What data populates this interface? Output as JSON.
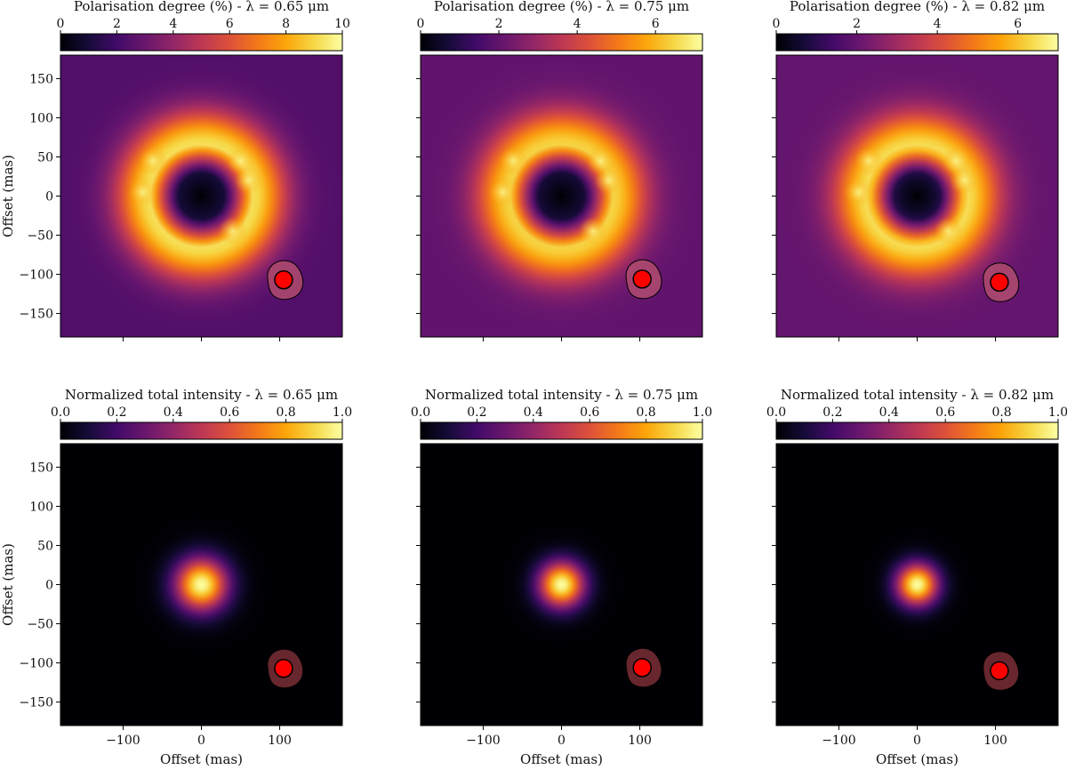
{
  "chart_data": [
    {
      "id": "pol-065",
      "type": "heatmap",
      "title": "Polarisation degree (%) - λ = 0.65 μm",
      "colorbar": {
        "ticks": [
          "0",
          "2",
          "4",
          "6",
          "8",
          "10"
        ],
        "range": [
          0,
          10
        ]
      },
      "xlabel": "",
      "ylabel": "Offset (mas)",
      "x_ticks": [],
      "y_ticks": [
        "150",
        "100",
        "50",
        "0",
        "−50",
        "−100",
        "−150"
      ],
      "axis_range": [
        -180,
        180
      ],
      "colormap": "inferno",
      "center": [
        0,
        0
      ],
      "structure": "ring",
      "inner_hole_radius": 30,
      "peak_ring_radius": 65,
      "peak_value": 10,
      "background_value": 2.4,
      "beam": {
        "x": 105,
        "y": -107
      }
    },
    {
      "id": "pol-075",
      "type": "heatmap",
      "title": "Polarisation degree (%) - λ = 0.75 μm",
      "colorbar": {
        "ticks": [
          "0",
          "2",
          "4",
          "6"
        ],
        "range": [
          0,
          7.2
        ]
      },
      "xlabel": "",
      "ylabel": "",
      "x_ticks": [],
      "y_ticks": [],
      "axis_range": [
        -180,
        180
      ],
      "colormap": "inferno",
      "center": [
        0,
        0
      ],
      "structure": "ring",
      "inner_hole_radius": 30,
      "peak_ring_radius": 65,
      "peak_value": 7,
      "background_value": 2.0,
      "beam": {
        "x": 103,
        "y": -106
      }
    },
    {
      "id": "pol-082",
      "type": "heatmap",
      "title": "Polarisation degree (%) - λ = 0.82 μm",
      "colorbar": {
        "ticks": [
          "0",
          "2",
          "4",
          "6"
        ],
        "range": [
          0,
          7.0
        ]
      },
      "xlabel": "",
      "ylabel": "",
      "x_ticks": [],
      "y_ticks": [],
      "axis_range": [
        -180,
        180
      ],
      "colormap": "inferno",
      "center": [
        0,
        0
      ],
      "structure": "ring",
      "inner_hole_radius": 28,
      "peak_ring_radius": 62,
      "peak_value": 7,
      "background_value": 2.0,
      "beam": {
        "x": 105,
        "y": -110
      }
    },
    {
      "id": "int-065",
      "type": "heatmap",
      "title": "Normalized total intensity - λ = 0.65 μm",
      "colorbar": {
        "ticks": [
          "0.0",
          "0.2",
          "0.4",
          "0.6",
          "0.8",
          "1.0"
        ],
        "range": [
          0,
          1
        ]
      },
      "xlabel": "Offset (mas)",
      "ylabel": "Offset (mas)",
      "x_ticks": [
        "−100",
        "0",
        "100"
      ],
      "y_ticks": [
        "150",
        "100",
        "50",
        "0",
        "−50",
        "−100",
        "−150"
      ],
      "axis_range": [
        -180,
        180
      ],
      "colormap": "inferno",
      "center": [
        0,
        0
      ],
      "structure": "gaussian",
      "fwhm": 55,
      "peak_value": 1,
      "beam": {
        "x": 105,
        "y": -107
      }
    },
    {
      "id": "int-075",
      "type": "heatmap",
      "title": "Normalized total intensity - λ = 0.75 μm",
      "colorbar": {
        "ticks": [
          "0.0",
          "0.2",
          "0.4",
          "0.6",
          "0.8",
          "1.0"
        ],
        "range": [
          0,
          1
        ]
      },
      "xlabel": "Offset (mas)",
      "ylabel": "",
      "x_ticks": [
        "−100",
        "0",
        "100"
      ],
      "y_ticks": [],
      "axis_range": [
        -180,
        180
      ],
      "colormap": "inferno",
      "center": [
        0,
        0
      ],
      "structure": "gaussian",
      "fwhm": 48,
      "peak_value": 1,
      "beam": {
        "x": 103,
        "y": -106
      }
    },
    {
      "id": "int-082",
      "type": "heatmap",
      "title": "Normalized total intensity - λ = 0.82 μm",
      "colorbar": {
        "ticks": [
          "0.0",
          "0.2",
          "0.4",
          "0.6",
          "0.8",
          "1.0"
        ],
        "range": [
          0,
          1
        ]
      },
      "xlabel": "Offset (mas)",
      "ylabel": "",
      "x_ticks": [
        "−100",
        "0",
        "100"
      ],
      "y_ticks": [],
      "axis_range": [
        -180,
        180
      ],
      "colormap": "inferno",
      "center": [
        0,
        0
      ],
      "structure": "gaussian",
      "fwhm": 44,
      "peak_value": 1,
      "beam": {
        "x": 105,
        "y": -110
      }
    }
  ],
  "colors": {
    "beam_fill": "#ff0000",
    "beam_halo_pol": "#b04c6f",
    "beam_halo_int": "#7a2e36",
    "frame": "#000000"
  }
}
